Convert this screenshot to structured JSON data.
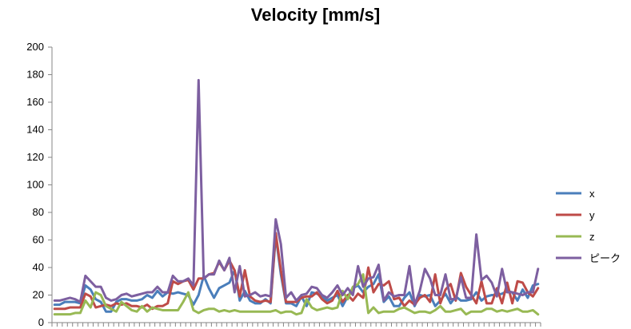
{
  "chart_data": {
    "type": "line",
    "title": "Velocity [mm/s]",
    "ylim": [
      0,
      200
    ],
    "yticks": [
      0,
      20,
      40,
      60,
      80,
      100,
      120,
      140,
      160,
      180,
      200
    ],
    "grid": false,
    "legend_position": "right",
    "x": [
      1,
      2,
      3,
      4,
      5,
      6,
      7,
      8,
      9,
      10,
      11,
      12,
      13,
      14,
      15,
      16,
      17,
      18,
      19,
      20,
      21,
      22,
      23,
      24,
      25,
      26,
      27,
      28,
      29,
      30,
      31,
      32,
      33,
      34,
      35,
      36,
      37,
      38,
      39,
      40,
      41,
      42,
      43,
      44,
      45,
      46,
      47,
      48,
      49,
      50,
      51,
      52,
      53,
      54,
      55,
      56,
      57,
      58,
      59,
      60,
      61,
      62,
      63,
      64,
      65,
      66,
      67,
      68,
      69,
      70,
      71,
      72,
      73,
      74,
      75,
      76,
      77,
      78,
      79,
      80,
      81,
      82,
      83,
      84,
      85,
      86,
      87,
      88,
      89,
      90,
      91,
      92,
      93,
      94,
      95
    ],
    "series": [
      {
        "name": "x",
        "color": "#4a7ebb",
        "values": [
          13,
          13,
          15,
          15,
          15,
          14,
          27,
          24,
          17,
          15,
          8,
          8,
          15,
          17,
          17,
          16,
          16,
          17,
          20,
          18,
          23,
          19,
          22,
          21,
          22,
          21,
          20,
          13,
          20,
          34,
          25,
          18,
          25,
          27,
          29,
          38,
          16,
          23,
          16,
          14,
          14,
          17,
          14,
          63,
          35,
          14,
          14,
          12,
          19,
          12,
          22,
          21,
          19,
          16,
          18,
          20,
          12,
          19,
          25,
          27,
          22,
          26,
          28,
          35,
          15,
          19,
          12,
          12,
          18,
          22,
          12,
          20,
          19,
          20,
          12,
          16,
          21,
          14,
          19,
          16,
          16,
          17,
          22,
          16,
          19,
          20,
          20,
          21,
          23,
          22,
          16,
          24,
          18,
          27,
          28
        ]
      },
      {
        "name": "y",
        "color": "#be4b48",
        "values": [
          10,
          10,
          10,
          11,
          11,
          11,
          21,
          19,
          11,
          12,
          13,
          12,
          14,
          13,
          14,
          12,
          12,
          11,
          13,
          10,
          12,
          12,
          14,
          30,
          28,
          30,
          31,
          24,
          32,
          32,
          35,
          36,
          44,
          38,
          45,
          38,
          19,
          38,
          19,
          16,
          15,
          16,
          15,
          65,
          38,
          15,
          15,
          15,
          18,
          19,
          19,
          22,
          17,
          14,
          16,
          23,
          15,
          20,
          16,
          21,
          18,
          40,
          22,
          28,
          27,
          30,
          17,
          18,
          12,
          16,
          13,
          18,
          20,
          15,
          35,
          14,
          24,
          28,
          16,
          36,
          26,
          20,
          14,
          30,
          14,
          14,
          25,
          14,
          29,
          14,
          30,
          29,
          22,
          19,
          25
        ]
      },
      {
        "name": "z",
        "color": "#98b954",
        "values": [
          6,
          6,
          6,
          6,
          7,
          7,
          16,
          11,
          22,
          20,
          12,
          10,
          8,
          15,
          12,
          9,
          8,
          12,
          8,
          11,
          10,
          9,
          9,
          9,
          9,
          15,
          22,
          9,
          7,
          9,
          10,
          10,
          8,
          9,
          8,
          9,
          8,
          8,
          8,
          8,
          8,
          8,
          8,
          9,
          7,
          8,
          8,
          6,
          7,
          17,
          11,
          9,
          10,
          11,
          10,
          11,
          23,
          17,
          26,
          28,
          35,
          7,
          11,
          7,
          8,
          8,
          8,
          10,
          11,
          9,
          7,
          8,
          8,
          7,
          9,
          12,
          8,
          8,
          9,
          10,
          6,
          8,
          8,
          8,
          10,
          10,
          8,
          9,
          8,
          9,
          10,
          8,
          8,
          9,
          6
        ]
      },
      {
        "name": "ピーク",
        "color": "#7d5fa0",
        "values": [
          16,
          16,
          17,
          18,
          17,
          15,
          34,
          30,
          26,
          26,
          18,
          16,
          17,
          20,
          21,
          19,
          20,
          21,
          22,
          22,
          26,
          22,
          22,
          34,
          30,
          30,
          32,
          27,
          176,
          32,
          35,
          35,
          45,
          38,
          47,
          22,
          41,
          19,
          20,
          22,
          19,
          20,
          19,
          75,
          57,
          18,
          22,
          16,
          20,
          21,
          26,
          25,
          20,
          18,
          22,
          27,
          20,
          25,
          20,
          41,
          26,
          32,
          33,
          42,
          16,
          22,
          19,
          20,
          20,
          41,
          13,
          23,
          39,
          32,
          20,
          20,
          35,
          17,
          17,
          33,
          18,
          18,
          64,
          31,
          34,
          29,
          19,
          39,
          22,
          22,
          21,
          20,
          22,
          22,
          39
        ]
      }
    ]
  }
}
